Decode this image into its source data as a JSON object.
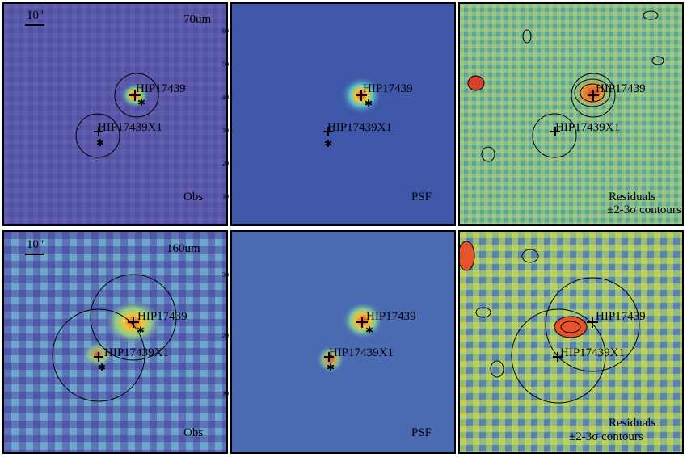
{
  "panels": {
    "p70_obs": {
      "band": "70um",
      "scale": "10\"",
      "corner": "Obs"
    },
    "p70_psf": {
      "corner": "PSF"
    },
    "p70_res": {
      "corner_line1": "Residuals",
      "corner_line2": "±2-3σ contours"
    },
    "p160_obs": {
      "band": "160um",
      "scale": "10\"",
      "corner": "Obs"
    },
    "p160_psf": {
      "corner": "PSF"
    },
    "p160_res": {
      "corner_line1": "Residuals",
      "corner_line2": "±2-3σ contours"
    }
  },
  "sources": {
    "primary": "HIP17439",
    "secondary": "HIP17439X1"
  },
  "axis_ticks": {
    "psf70": [
      "60",
      "50",
      "40",
      "30",
      "20",
      "10"
    ],
    "psf160": [
      "30",
      "20",
      "10"
    ]
  },
  "colors": {
    "obs70_bg": "#5b56a8",
    "psf_bg": "#3f57a8",
    "res_bg": "#7fb88a",
    "hot": "#e8501f",
    "warm": "#f4d23a"
  }
}
